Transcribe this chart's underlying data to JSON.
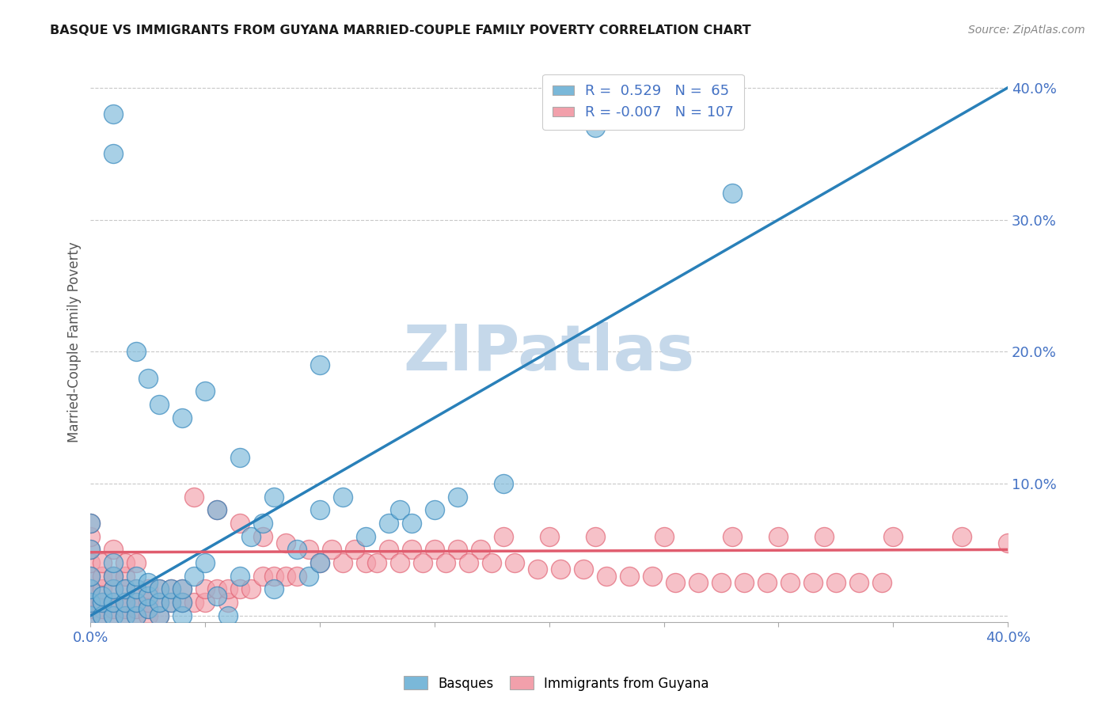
{
  "title": "BASQUE VS IMMIGRANTS FROM GUYANA MARRIED-COUPLE FAMILY POVERTY CORRELATION CHART",
  "source": "Source: ZipAtlas.com",
  "ylabel": "Married-Couple Family Poverty",
  "xmin": 0.0,
  "xmax": 0.4,
  "ymin": -0.005,
  "ymax": 0.42,
  "blue_R": 0.529,
  "blue_N": 65,
  "pink_R": -0.007,
  "pink_N": 107,
  "blue_color": "#7ab8d9",
  "pink_color": "#f2a0ab",
  "blue_line_color": "#2980b9",
  "pink_line_color": "#e05c6e",
  "watermark": "ZIPatlas",
  "watermark_color": "#c5d8ea",
  "legend_blue_label": "Basques",
  "legend_pink_label": "Immigrants from Guyana",
  "blue_line_x0": 0.0,
  "blue_line_y0": 0.0,
  "blue_line_x1": 0.4,
  "blue_line_y1": 0.4,
  "pink_line_x0": 0.0,
  "pink_line_y0": 0.048,
  "pink_line_x1": 0.4,
  "pink_line_y1": 0.05,
  "blue_points_x": [
    0.0,
    0.0,
    0.0,
    0.0,
    0.0,
    0.0,
    0.005,
    0.005,
    0.005,
    0.01,
    0.01,
    0.01,
    0.01,
    0.01,
    0.015,
    0.015,
    0.015,
    0.02,
    0.02,
    0.02,
    0.02,
    0.025,
    0.025,
    0.025,
    0.03,
    0.03,
    0.03,
    0.035,
    0.035,
    0.04,
    0.04,
    0.04,
    0.045,
    0.05,
    0.055,
    0.055,
    0.06,
    0.065,
    0.065,
    0.07,
    0.075,
    0.08,
    0.09,
    0.095,
    0.1,
    0.1,
    0.11,
    0.12,
    0.13,
    0.135,
    0.14,
    0.15,
    0.16,
    0.18,
    0.22,
    0.28,
    0.01,
    0.01,
    0.02,
    0.025,
    0.03,
    0.04,
    0.05,
    0.08,
    0.1
  ],
  "blue_points_y": [
    0.0,
    0.01,
    0.02,
    0.03,
    0.05,
    0.07,
    0.0,
    0.01,
    0.015,
    0.0,
    0.01,
    0.02,
    0.03,
    0.04,
    0.0,
    0.01,
    0.02,
    0.0,
    0.01,
    0.02,
    0.03,
    0.005,
    0.015,
    0.025,
    0.0,
    0.01,
    0.02,
    0.01,
    0.02,
    0.0,
    0.01,
    0.02,
    0.03,
    0.04,
    0.015,
    0.08,
    0.0,
    0.03,
    0.12,
    0.06,
    0.07,
    0.02,
    0.05,
    0.03,
    0.04,
    0.08,
    0.09,
    0.06,
    0.07,
    0.08,
    0.07,
    0.08,
    0.09,
    0.1,
    0.37,
    0.32,
    0.35,
    0.38,
    0.2,
    0.18,
    0.16,
    0.15,
    0.17,
    0.09,
    0.19
  ],
  "pink_points_x": [
    0.0,
    0.0,
    0.0,
    0.0,
    0.0,
    0.0,
    0.0,
    0.0,
    0.0,
    0.0,
    0.005,
    0.005,
    0.005,
    0.005,
    0.005,
    0.005,
    0.01,
    0.01,
    0.01,
    0.01,
    0.01,
    0.01,
    0.015,
    0.015,
    0.015,
    0.015,
    0.015,
    0.015,
    0.02,
    0.02,
    0.02,
    0.02,
    0.02,
    0.025,
    0.025,
    0.025,
    0.025,
    0.03,
    0.03,
    0.03,
    0.035,
    0.035,
    0.04,
    0.04,
    0.045,
    0.05,
    0.05,
    0.055,
    0.06,
    0.06,
    0.065,
    0.07,
    0.075,
    0.08,
    0.085,
    0.09,
    0.1,
    0.11,
    0.12,
    0.13,
    0.14,
    0.15,
    0.16,
    0.17,
    0.18,
    0.2,
    0.22,
    0.25,
    0.28,
    0.3,
    0.32,
    0.35,
    0.38,
    0.4,
    0.045,
    0.055,
    0.065,
    0.075,
    0.085,
    0.095,
    0.105,
    0.115,
    0.125,
    0.135,
    0.145,
    0.155,
    0.165,
    0.175,
    0.185,
    0.195,
    0.205,
    0.215,
    0.225,
    0.235,
    0.245,
    0.255,
    0.265,
    0.275,
    0.285,
    0.295,
    0.305,
    0.315,
    0.325,
    0.335,
    0.345
  ],
  "pink_points_y": [
    0.0,
    0.005,
    0.01,
    0.015,
    0.02,
    0.03,
    0.04,
    0.05,
    0.06,
    0.07,
    0.0,
    0.005,
    0.01,
    0.02,
    0.03,
    0.04,
    0.0,
    0.005,
    0.01,
    0.02,
    0.03,
    0.05,
    0.0,
    0.005,
    0.01,
    0.02,
    0.03,
    0.04,
    0.0,
    0.005,
    0.01,
    0.02,
    0.04,
    0.0,
    0.005,
    0.01,
    0.02,
    0.0,
    0.01,
    0.02,
    0.01,
    0.02,
    0.01,
    0.02,
    0.01,
    0.01,
    0.02,
    0.02,
    0.01,
    0.02,
    0.02,
    0.02,
    0.03,
    0.03,
    0.03,
    0.03,
    0.04,
    0.04,
    0.04,
    0.05,
    0.05,
    0.05,
    0.05,
    0.05,
    0.06,
    0.06,
    0.06,
    0.06,
    0.06,
    0.06,
    0.06,
    0.06,
    0.06,
    0.055,
    0.09,
    0.08,
    0.07,
    0.06,
    0.055,
    0.05,
    0.05,
    0.05,
    0.04,
    0.04,
    0.04,
    0.04,
    0.04,
    0.04,
    0.04,
    0.035,
    0.035,
    0.035,
    0.03,
    0.03,
    0.03,
    0.025,
    0.025,
    0.025,
    0.025,
    0.025,
    0.025,
    0.025,
    0.025,
    0.025,
    0.025
  ]
}
